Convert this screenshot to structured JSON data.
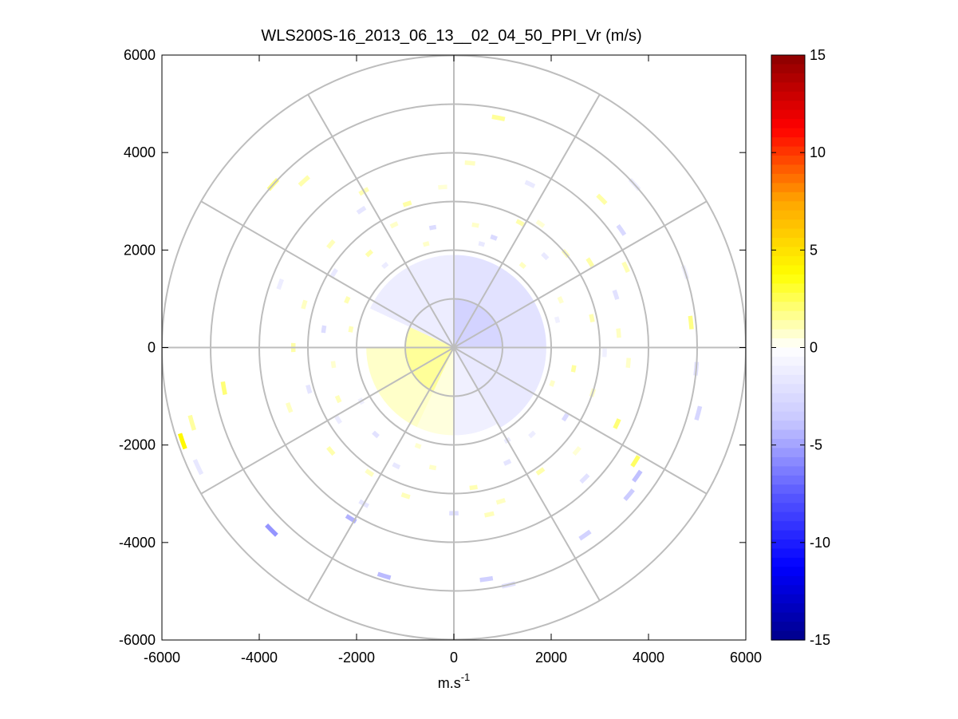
{
  "chart_data": {
    "type": "heatmap",
    "subtype": "polar-ppi",
    "title": "WLS200S-16_2013_06_13__02_04_50_PPI_Vr (m/s)",
    "xlabel_base": "m.s",
    "xlabel_exp": "-1",
    "ylabel": "",
    "xlim": [
      -6000,
      6000
    ],
    "ylim": [
      -6000,
      6000
    ],
    "x_ticks": [
      -6000,
      -4000,
      -2000,
      0,
      2000,
      4000,
      6000
    ],
    "y_ticks": [
      6000,
      4000,
      2000,
      0,
      -2000,
      -4000,
      -6000
    ],
    "x_tick_labels": [
      "-6000",
      "-4000",
      "-2000",
      "0",
      "2000",
      "4000",
      "6000"
    ],
    "y_tick_labels": [
      "6000",
      "4000",
      "2000",
      "0",
      "-2000",
      "-4000",
      "-6000"
    ],
    "polar_rings": [
      1000,
      2000,
      3000,
      4000,
      5000,
      6000
    ],
    "polar_spokes_deg": [
      0,
      30,
      60,
      90,
      120,
      150,
      180,
      210,
      240,
      270,
      300,
      330
    ],
    "colorbar": {
      "range": [
        -15,
        15
      ],
      "ticks": [
        15,
        10,
        5,
        0,
        -5,
        -10,
        -15
      ],
      "tick_labels": [
        "15",
        "10",
        "5",
        "0",
        "-5",
        "-10",
        "-15"
      ],
      "colors_low_to_high": [
        "#00008b",
        "#0000ff",
        "#5a5aff",
        "#c8c8ff",
        "#ffffff",
        "#ffff00",
        "#ffa500",
        "#ff0000",
        "#8b0000"
      ]
    },
    "regions": [
      {
        "az": [
          0,
          60
        ],
        "r": [
          0,
          1000
        ],
        "v": -3.0
      },
      {
        "az": [
          60,
          90
        ],
        "r": [
          0,
          1000
        ],
        "v": -2.8
      },
      {
        "az": [
          0,
          90
        ],
        "r": [
          1000,
          1900
        ],
        "v": -2.0
      },
      {
        "az": [
          90,
          150
        ],
        "r": [
          0,
          1900
        ],
        "v": -1.5
      },
      {
        "az": [
          150,
          180
        ],
        "r": [
          0,
          1800
        ],
        "v": -1.0
      },
      {
        "az": [
          180,
          205
        ],
        "r": [
          0,
          1800
        ],
        "v": 0.5
      },
      {
        "az": [
          205,
          270
        ],
        "r": [
          0,
          1000
        ],
        "v": 1.5
      },
      {
        "az": [
          205,
          270
        ],
        "r": [
          1000,
          1800
        ],
        "v": 0.8
      },
      {
        "az": [
          270,
          295
        ],
        "r": [
          0,
          1000
        ],
        "v": 1.2
      },
      {
        "az": [
          295,
          360
        ],
        "r": [
          0,
          1900
        ],
        "v": -1.2
      }
    ],
    "cells": [
      {
        "az": 10,
        "r": 2550,
        "v": 0.8
      },
      {
        "az": 20,
        "r": 2400,
        "v": -2.5
      },
      {
        "az": 28,
        "r": 2900,
        "v": 1.2
      },
      {
        "az": 35,
        "r": 3100,
        "v": 0.6
      },
      {
        "az": 45,
        "r": 2650,
        "v": -1.5
      },
      {
        "az": 50,
        "r": 3000,
        "v": 1.0
      },
      {
        "az": 58,
        "r": 3300,
        "v": 1.3
      },
      {
        "az": 66,
        "r": 2400,
        "v": 0.7
      },
      {
        "az": 72,
        "r": 3500,
        "v": -2.0
      },
      {
        "az": 78,
        "r": 2900,
        "v": 1.1
      },
      {
        "az": 85,
        "r": 3400,
        "v": 0.9
      },
      {
        "az": 92,
        "r": 3100,
        "v": -1.0
      },
      {
        "az": 100,
        "r": 2500,
        "v": 1.4
      },
      {
        "az": 108,
        "r": 3000,
        "v": 0.8
      },
      {
        "az": 115,
        "r": 3700,
        "v": 2.0
      },
      {
        "az": 122,
        "r": 2700,
        "v": -2.5
      },
      {
        "az": 130,
        "r": 3300,
        "v": 0.6
      },
      {
        "az": 138,
        "r": 2400,
        "v": -1.2
      },
      {
        "az": 145,
        "r": 3100,
        "v": 1.2
      },
      {
        "az": 155,
        "r": 2600,
        "v": -1.8
      },
      {
        "az": 163,
        "r": 3300,
        "v": 0.9
      },
      {
        "az": 172,
        "r": 2900,
        "v": 1.1
      },
      {
        "az": 180,
        "r": 3400,
        "v": -2.2
      },
      {
        "az": 190,
        "r": 2500,
        "v": 0.8
      },
      {
        "az": 198,
        "r": 3200,
        "v": 1.0
      },
      {
        "az": 206,
        "r": 2700,
        "v": -1.6
      },
      {
        "az": 214,
        "r": 3100,
        "v": 0.9
      },
      {
        "az": 222,
        "r": 2400,
        "v": -2.0
      },
      {
        "az": 230,
        "r": 3300,
        "v": 1.2
      },
      {
        "az": 238,
        "r": 2800,
        "v": -1.3
      },
      {
        "az": 246,
        "r": 2600,
        "v": 1.0
      },
      {
        "az": 254,
        "r": 3100,
        "v": -1.8
      },
      {
        "az": 262,
        "r": 2500,
        "v": 0.7
      },
      {
        "az": 270,
        "r": 3300,
        "v": 1.3
      },
      {
        "az": 278,
        "r": 2700,
        "v": -2.3
      },
      {
        "az": 286,
        "r": 3200,
        "v": 0.9
      },
      {
        "az": 294,
        "r": 2400,
        "v": 1.1
      },
      {
        "az": 302,
        "r": 2900,
        "v": -1.5
      },
      {
        "az": 310,
        "r": 3300,
        "v": 1.0
      },
      {
        "az": 318,
        "r": 2600,
        "v": 1.2
      },
      {
        "az": 326,
        "r": 3400,
        "v": -1.7
      },
      {
        "az": 334,
        "r": 2800,
        "v": 0.8
      },
      {
        "az": 342,
        "r": 3100,
        "v": 1.3
      },
      {
        "az": 350,
        "r": 2500,
        "v": -2.4
      },
      {
        "az": 356,
        "r": 3300,
        "v": 0.6
      },
      {
        "az": 15,
        "r": 2200,
        "v": -1.5
      },
      {
        "az": 40,
        "r": 2200,
        "v": 0.9
      },
      {
        "az": 75,
        "r": 2200,
        "v": -1.0
      },
      {
        "az": 110,
        "r": 2150,
        "v": 0.8
      },
      {
        "az": 150,
        "r": 2200,
        "v": -1.4
      },
      {
        "az": 200,
        "r": 2150,
        "v": 0.7
      },
      {
        "az": 240,
        "r": 2200,
        "v": -1.1
      },
      {
        "az": 280,
        "r": 2150,
        "v": 1.0
      },
      {
        "az": 320,
        "r": 2200,
        "v": -1.3
      },
      {
        "az": 345,
        "r": 2200,
        "v": 0.8
      },
      {
        "az": 5,
        "r": 3800,
        "v": 0.9
      },
      {
        "az": 25,
        "r": 3700,
        "v": -1.4
      },
      {
        "az": 65,
        "r": 3900,
        "v": 1.1
      },
      {
        "az": 95,
        "r": 3600,
        "v": 0.8
      },
      {
        "az": 135,
        "r": 3800,
        "v": -2.0
      },
      {
        "az": 168,
        "r": 3500,
        "v": 1.0
      },
      {
        "az": 210,
        "r": 3700,
        "v": -1.7
      },
      {
        "az": 250,
        "r": 3600,
        "v": 0.9
      },
      {
        "az": 290,
        "r": 3800,
        "v": -1.2
      },
      {
        "az": 330,
        "r": 3700,
        "v": 1.1
      },
      {
        "az": 11,
        "r": 4800,
        "v": 1.5
      },
      {
        "az": 45,
        "r": 4300,
        "v": 1.3
      },
      {
        "az": 48,
        "r": 5000,
        "v": -1.2
      },
      {
        "az": 55,
        "r": 4200,
        "v": -2.6
      },
      {
        "az": 72,
        "r": 5000,
        "v": -1.0
      },
      {
        "az": 84,
        "r": 4900,
        "v": 1.8
      },
      {
        "az": 95,
        "r": 5000,
        "v": -2.0
      },
      {
        "az": 105,
        "r": 5200,
        "v": -2.8
      },
      {
        "az": 122,
        "r": 4400,
        "v": 2.3
      },
      {
        "az": 125,
        "r": 4600,
        "v": -4.0
      },
      {
        "az": 130,
        "r": 4700,
        "v": -3.5
      },
      {
        "az": 145,
        "r": 4700,
        "v": -3.0
      },
      {
        "az": 167,
        "r": 5000,
        "v": -2.0
      },
      {
        "az": 172,
        "r": 4800,
        "v": -3.2
      },
      {
        "az": 197,
        "r": 4900,
        "v": -4.2
      },
      {
        "az": 211,
        "r": 4100,
        "v": -4.5
      },
      {
        "az": 225,
        "r": 5300,
        "v": -5.5
      },
      {
        "az": 251,
        "r": 5900,
        "v": 4.0
      },
      {
        "az": 254,
        "r": 5600,
        "v": 1.4
      },
      {
        "az": 260,
        "r": 4800,
        "v": 2.0
      },
      {
        "az": 245,
        "r": 5800,
        "v": -1.6
      },
      {
        "az": 312,
        "r": 5000,
        "v": 1.8
      },
      {
        "az": 318,
        "r": 4600,
        "v": 1.2
      }
    ]
  }
}
